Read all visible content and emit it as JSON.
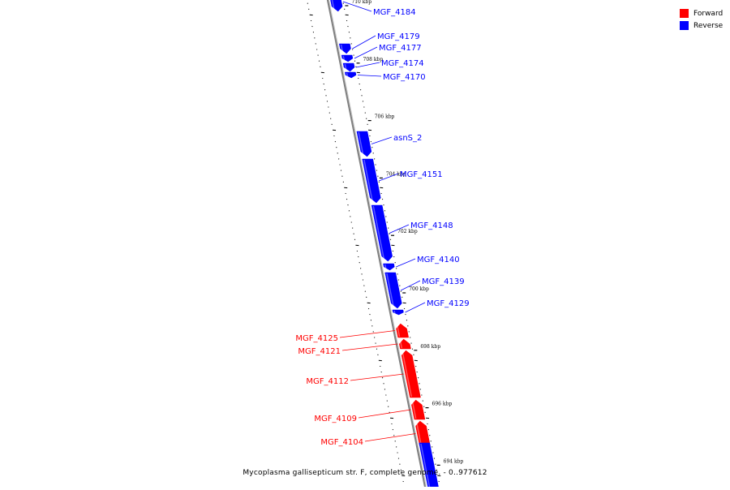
{
  "legend": [
    {
      "label": "Forward",
      "color": "#ff0000"
    },
    {
      "label": "Reverse",
      "color": "#0000ff"
    }
  ],
  "caption": "Mycoplasma gallisepticum str. F, complete genome. - 0..977612",
  "colors": {
    "forward": "#ff0000",
    "reverse": "#0000ff",
    "backbone": "#808080"
  },
  "ticks": [
    {
      "kbp": 710,
      "label": "710 kbp"
    },
    {
      "kbp": 708,
      "label": "708 kbp"
    },
    {
      "kbp": 706,
      "label": "706 kbp"
    },
    {
      "kbp": 704,
      "label": "704 kbp"
    },
    {
      "kbp": 702,
      "label": "702 kbp"
    },
    {
      "kbp": 700,
      "label": "700 kbp"
    },
    {
      "kbp": 698,
      "label": "698 kbp"
    },
    {
      "kbp": 696,
      "label": "696 kbp"
    },
    {
      "kbp": 694,
      "label": "694 kbp"
    }
  ],
  "genes": [
    {
      "label": "MGF_4184",
      "strand": "reverse"
    },
    {
      "label": "MGF_4179",
      "strand": "reverse"
    },
    {
      "label": "MGF_4177",
      "strand": "reverse"
    },
    {
      "label": "MGF_4174",
      "strand": "reverse"
    },
    {
      "label": "MGF_4170",
      "strand": "reverse"
    },
    {
      "label": "asnS_2",
      "strand": "reverse"
    },
    {
      "label": "MGF_4151",
      "strand": "reverse"
    },
    {
      "label": "MGF_4148",
      "strand": "reverse"
    },
    {
      "label": "MGF_4140",
      "strand": "reverse"
    },
    {
      "label": "MGF_4139",
      "strand": "reverse"
    },
    {
      "label": "MGF_4129",
      "strand": "reverse"
    },
    {
      "label": "MGF_4125",
      "strand": "forward"
    },
    {
      "label": "MGF_4121",
      "strand": "forward"
    },
    {
      "label": "MGF_4112",
      "strand": "forward"
    },
    {
      "label": "MGF_4109",
      "strand": "forward"
    },
    {
      "label": "MGF_4104",
      "strand": "forward"
    },
    {
      "label": "",
      "strand": "reverse"
    }
  ]
}
